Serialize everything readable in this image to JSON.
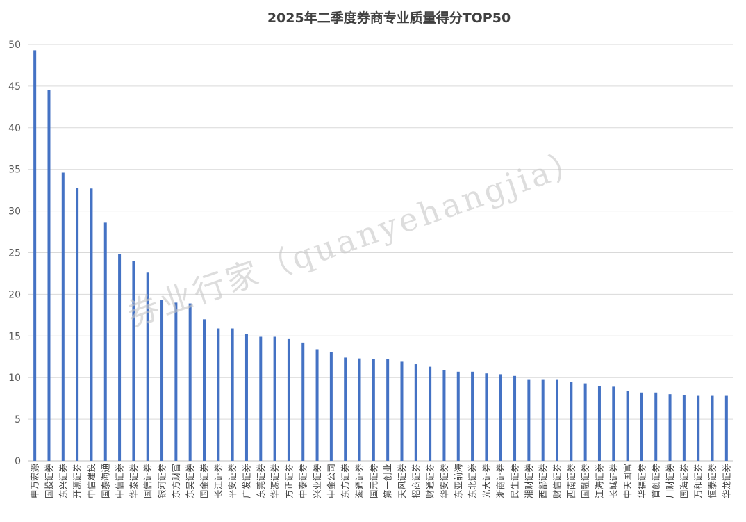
{
  "chart_data": {
    "type": "bar",
    "title": "2025年二季度券商专业质量得分TOP50",
    "xlabel": "",
    "ylabel": "",
    "ylim": [
      0,
      50
    ],
    "yticks": [
      0,
      5,
      10,
      15,
      20,
      25,
      30,
      35,
      40,
      45,
      50
    ],
    "grid": true,
    "legend": "none",
    "bar_color": "#4472c4",
    "categories": [
      "申万宏源",
      "国投证券",
      "东兴证券",
      "开源证券",
      "中信建投",
      "国泰海通",
      "中信证券",
      "华泰证券",
      "国信证券",
      "银河证券",
      "东方财富",
      "东吴证券",
      "国金证券",
      "长江证券",
      "平安证券",
      "广发证券",
      "东莞证券",
      "华源证券",
      "方正证券",
      "中泰证券",
      "兴业证券",
      "中金公司",
      "东方证券",
      "海通证券",
      "国元证券",
      "第一创业",
      "天风证券",
      "招商证券",
      "财通证券",
      "华安证券",
      "东亚前海",
      "东北证券",
      "光大证券",
      "浙商证券",
      "民生证券",
      "湘财证券",
      "西部证券",
      "财信证券",
      "西南证券",
      "国融证券",
      "江海证券",
      "长城证券",
      "中天国富",
      "华福证券",
      "首创证券",
      "川财证券",
      "国海证券",
      "万和证券",
      "恒泰证券",
      "华龙证券"
    ],
    "values": [
      49.3,
      44.5,
      34.6,
      32.8,
      32.7,
      28.6,
      24.8,
      24.0,
      22.6,
      19.3,
      19.0,
      18.9,
      17.0,
      15.9,
      15.9,
      15.2,
      14.9,
      14.9,
      14.7,
      14.2,
      13.4,
      13.1,
      12.4,
      12.3,
      12.2,
      12.2,
      11.9,
      11.6,
      11.3,
      10.9,
      10.7,
      10.7,
      10.5,
      10.4,
      10.2,
      9.8,
      9.8,
      9.8,
      9.5,
      9.3,
      9.0,
      8.9,
      8.4,
      8.2,
      8.2,
      8.0,
      7.9,
      7.8,
      7.8,
      7.8
    ]
  },
  "watermark": "券业行家（quanyehangjia）"
}
